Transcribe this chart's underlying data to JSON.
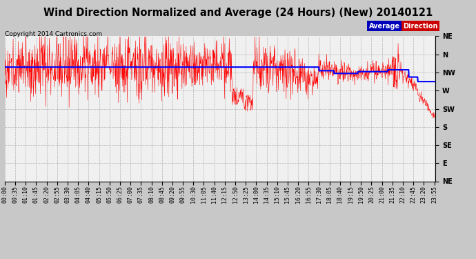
{
  "title": "Wind Direction Normalized and Average (24 Hours) (New) 20140121",
  "copyright": "Copyright 2014 Cartronics.com",
  "background_color": "#c8c8c8",
  "plot_bg_color": "#f0f0f0",
  "y_labels": [
    "NE",
    "N",
    "NW",
    "W",
    "SW",
    "S",
    "SE",
    "E",
    "NE"
  ],
  "y_ticks": [
    8,
    7,
    6,
    5,
    4,
    3,
    2,
    1,
    0
  ],
  "grid_color": "#999999",
  "direction_line_color": "#ff0000",
  "average_line_color": "#0000ff",
  "title_fontsize": 10.5,
  "copyright_fontsize": 6.5,
  "tick_fontsize": 6.0,
  "avg_legend_bg": "#0000bb",
  "dir_legend_bg": "#cc0000"
}
